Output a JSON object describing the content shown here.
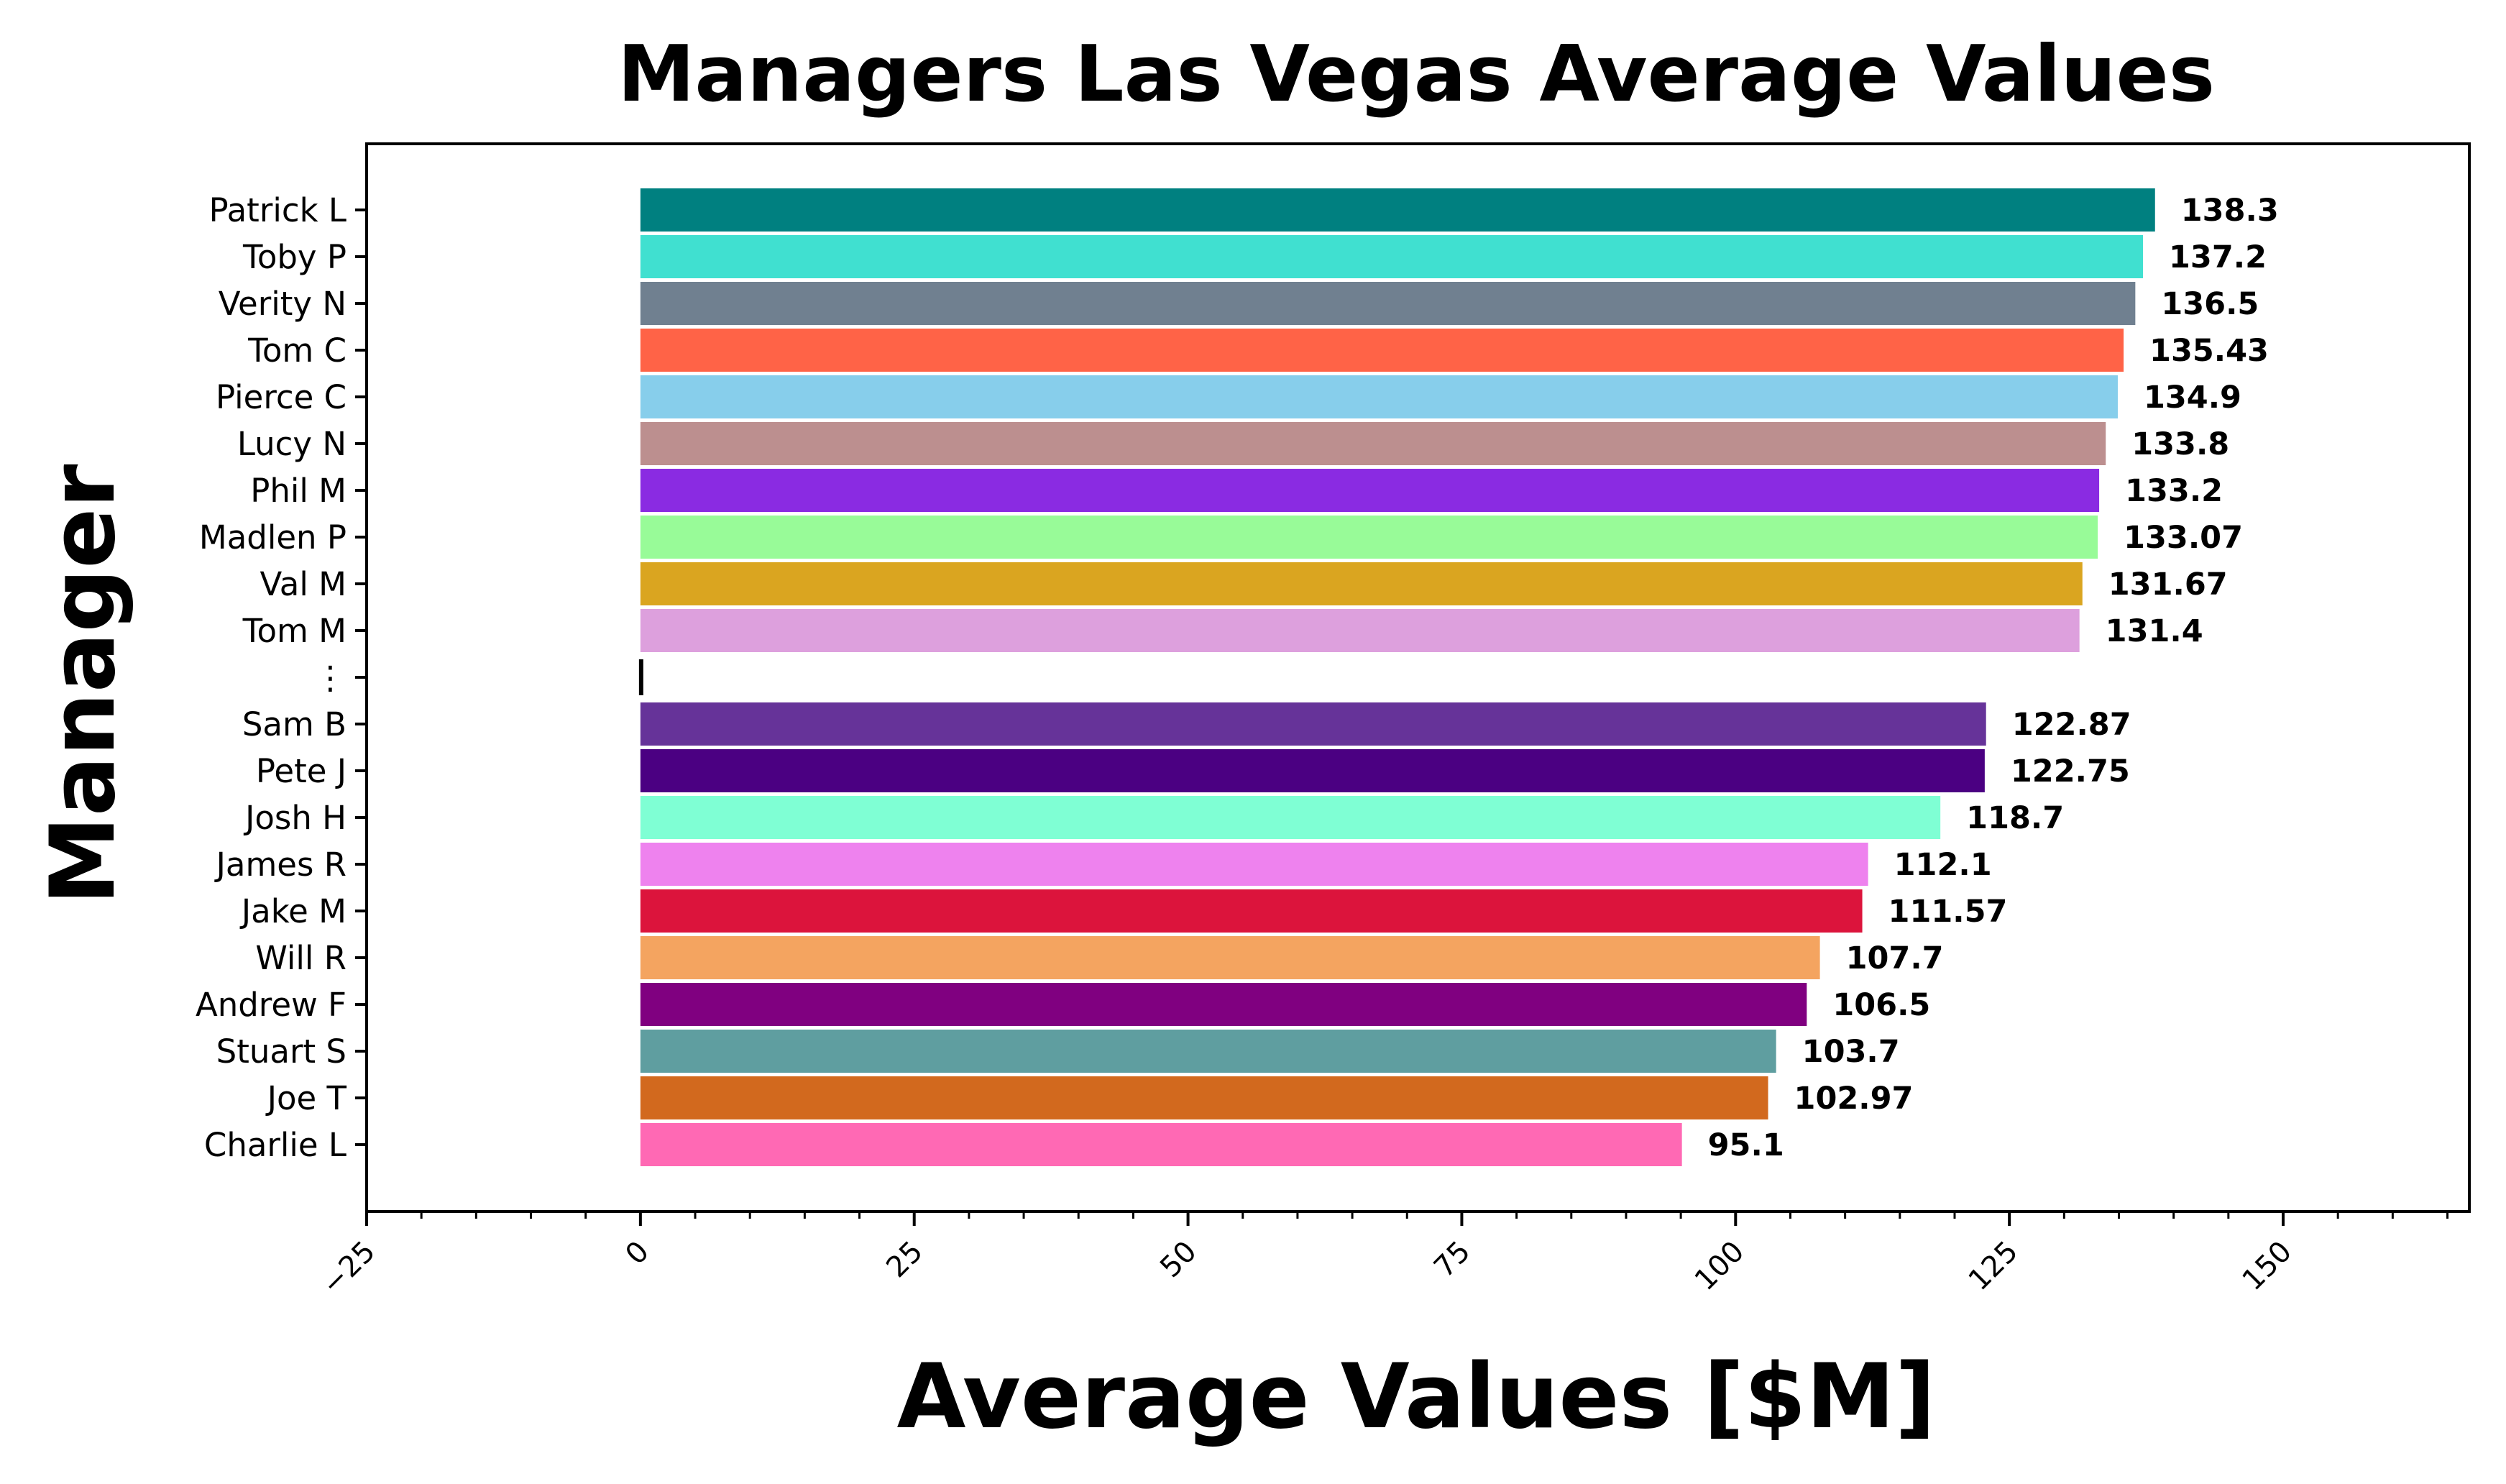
{
  "chart_data": {
    "type": "bar",
    "orientation": "horizontal",
    "title": "Managers Las Vegas Average Values",
    "xlabel": "Average Values [$M]",
    "ylabel": "Manager",
    "xlim": [
      -25,
      167
    ],
    "xticks": [
      -25,
      0,
      25,
      50,
      75,
      100,
      125,
      150
    ],
    "xtick_labels": [
      "−25",
      "0",
      "25",
      "50",
      "75",
      "100",
      "125",
      "150"
    ],
    "grid": false,
    "legend": "none",
    "categories": [
      "Patrick L",
      "Toby P",
      "Verity N",
      "Tom C",
      "Pierce C",
      "Lucy N",
      "Phil M",
      "Madlen P",
      "Val M",
      "Tom M",
      "⋮",
      "Sam B",
      "Pete J",
      "Josh H",
      "James R",
      "Jake M",
      "Will R",
      "Andrew F",
      "Stuart S",
      "Joe T",
      "Charlie L"
    ],
    "values": [
      138.3,
      137.2,
      136.5,
      135.43,
      134.9,
      133.8,
      133.2,
      133.07,
      131.67,
      131.4,
      null,
      122.87,
      122.75,
      118.7,
      112.1,
      111.57,
      107.7,
      106.5,
      103.7,
      102.97,
      95.1
    ],
    "value_labels": [
      "138.3",
      "137.2",
      "136.5",
      "135.43",
      "134.9",
      "133.8",
      "133.2",
      "133.07",
      "131.67",
      "131.4",
      "",
      "122.87",
      "122.75",
      "118.7",
      "112.1",
      "111.57",
      "107.7",
      "106.5",
      "103.7",
      "102.97",
      "95.1"
    ],
    "colors": [
      "#008080",
      "#40E0D0",
      "#708090",
      "#FF6347",
      "#87CEEB",
      "#BC8F8F",
      "#8A2BE2",
      "#98FB98",
      "#DAA520",
      "#DDA0DD",
      "#000000",
      "#663399",
      "#4B0082",
      "#7FFFD4",
      "#EE82EE",
      "#DC143C",
      "#F4A460",
      "#800080",
      "#5F9EA0",
      "#D2691E",
      "#FF69B4"
    ]
  }
}
